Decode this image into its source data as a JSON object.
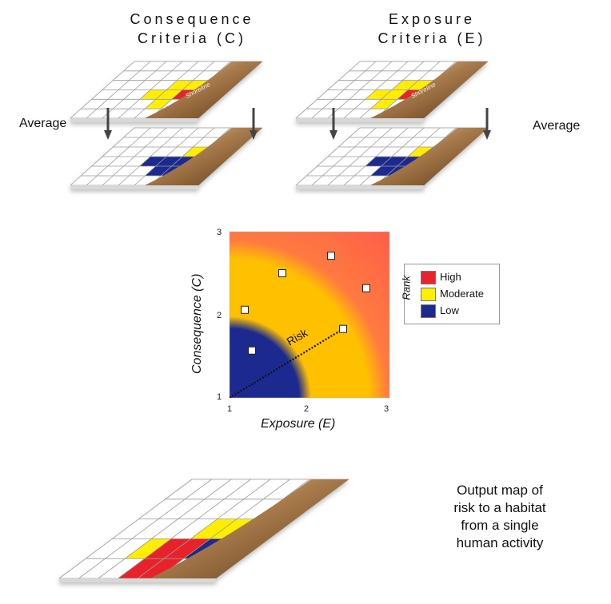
{
  "titles": {
    "consequence": [
      "Consequence",
      "Criteria (C)"
    ],
    "exposure": [
      "Exposure",
      "Criteria (E)"
    ]
  },
  "average_label": "Average",
  "shoreline_label": "Shoreline",
  "chart": {
    "xlabel": "Exposure (E)",
    "ylabel": "Consequence (C)",
    "xticks": [
      "1",
      "2",
      "3"
    ],
    "yticks": [
      "1",
      "2",
      "3"
    ],
    "risk_label": "Risk"
  },
  "chart_data": {
    "type": "scatter",
    "xlabel": "Exposure (E)",
    "ylabel": "Consequence (C)",
    "xlim": [
      1,
      3
    ],
    "ylim": [
      1,
      3
    ],
    "points": [
      {
        "x": 1.28,
        "y": 1.57
      },
      {
        "x": 1.19,
        "y": 2.06
      },
      {
        "x": 1.66,
        "y": 2.5
      },
      {
        "x": 2.27,
        "y": 2.71
      },
      {
        "x": 2.71,
        "y": 2.32
      },
      {
        "x": 2.42,
        "y": 1.83
      }
    ],
    "risk_line": {
      "from": [
        1,
        1
      ],
      "to": [
        2.42,
        1.83
      ]
    },
    "zones": [
      "Low",
      "Moderate",
      "High"
    ]
  },
  "legend": {
    "title": "Rank",
    "items": [
      {
        "label": "High",
        "color": "#e8232c"
      },
      {
        "label": "Moderate",
        "color": "#ffee00"
      },
      {
        "label": "Low",
        "color": "#1c2a8f"
      }
    ]
  },
  "output_text": [
    "Output map of",
    "risk to a habitat",
    "from a single",
    "human activity"
  ],
  "colors": {
    "red": "#e8232c",
    "yellow": "#ffee00",
    "blue": "#1c2a8f",
    "gold": "#ffc000",
    "shore": "#8b5a2b"
  }
}
